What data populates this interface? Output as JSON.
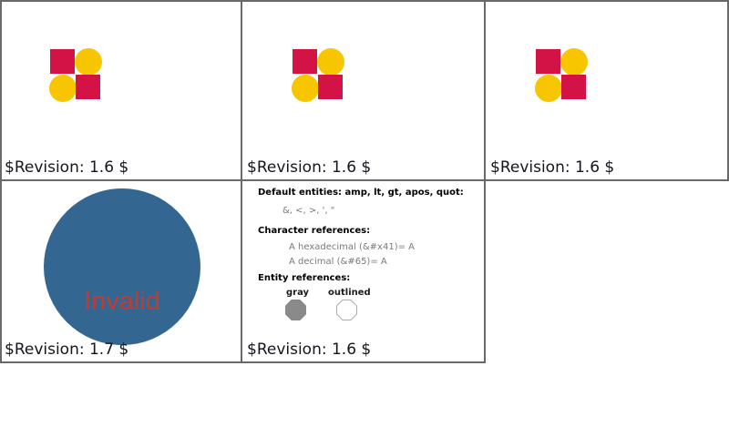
{
  "colors": {
    "background": "#FFFFFF",
    "grid_border": "#696969",
    "pattern_red": "#D31245",
    "pattern_yellow": "#F7C600",
    "big_circle_blue": "#336791",
    "invalid_text_red": "#C23B33",
    "revision_text": "#15151E",
    "entities_header_text": "#000000",
    "entities_value_gray": "#7A7A7A",
    "octagon_gray_fill": "#8A8A8A",
    "octagon_outline": "#ABABAB"
  },
  "panels": [
    {
      "name": "pattern-test-1",
      "revision": "$Revision: 1.6 $"
    },
    {
      "name": "pattern-test-2",
      "revision": "$Revision: 1.6 $"
    },
    {
      "name": "pattern-test-3",
      "revision": "$Revision: 1.6 $"
    },
    {
      "name": "invalid-test",
      "invalid_label": "Invalid",
      "revision": "$Revision: 1.7 $"
    },
    {
      "name": "entities-test",
      "default_entities_header": "Default entities: amp, lt, gt, apos, quot:",
      "default_entities_value": "&, <, >, ', \"",
      "char_refs_header": "Character references:",
      "char_ref_hex": "A hexadecimal (&#x41)= A",
      "char_ref_dec": "A decimal (&#65)= A",
      "entity_refs_header": "Entity references:",
      "gray_label": "gray",
      "outlined_label": "outlined",
      "revision": "$Revision: 1.6 $"
    }
  ]
}
